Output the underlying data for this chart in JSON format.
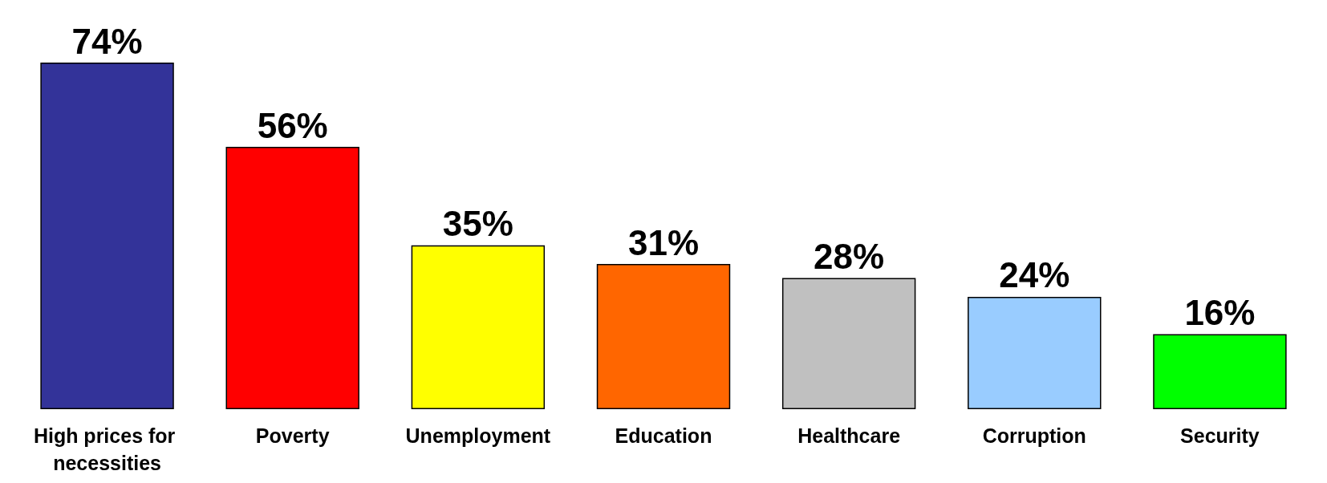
{
  "chart_data": {
    "type": "bar",
    "categories": [
      "High prices for necessities",
      "Poverty",
      "Unemployment",
      "Education",
      "Healthcare",
      "Corruption",
      "Security"
    ],
    "values": [
      74,
      56,
      35,
      31,
      28,
      24,
      16
    ],
    "colors": [
      "#333399",
      "#ff0000",
      "#ffff00",
      "#ff6600",
      "#c0c0c0",
      "#99ccff",
      "#00ff00"
    ],
    "value_labels": [
      "74%",
      "56%",
      "35%",
      "31%",
      "28%",
      "24%",
      "16%"
    ]
  }
}
